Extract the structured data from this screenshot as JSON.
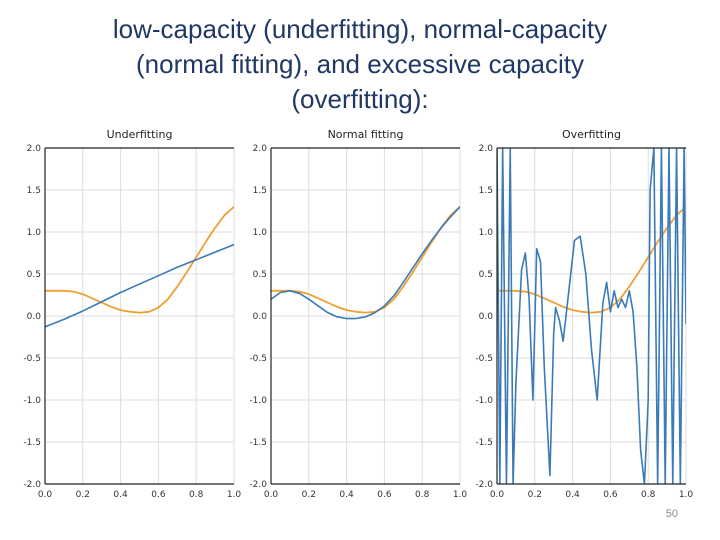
{
  "slide": {
    "title_lines": [
      "low-capacity (underfitting), normal-capacity",
      "(normal fitting), and excessive capacity",
      "(overfitting):"
    ],
    "page_number": "50"
  },
  "colors": {
    "model": "#3a7ab8",
    "truth": "#f0a030",
    "grid": "#dddddd",
    "axis": "#222222"
  },
  "chart_data": [
    {
      "type": "line",
      "title": "Underfitting",
      "xlabel": "",
      "ylabel": "",
      "xlim": [
        0.0,
        1.0
      ],
      "ylim": [
        -2.0,
        2.0
      ],
      "xticks": [
        "0.0",
        "0.2",
        "0.4",
        "0.6",
        "0.8",
        "1.0"
      ],
      "yticks": [
        "2.0",
        "1.5",
        "1.0",
        "0.5",
        "0.0",
        "-0.5",
        "-1.0",
        "-1.5",
        "-2.0"
      ],
      "grid": true,
      "series": [
        {
          "role": "truth",
          "x": [
            0,
            0.05,
            0.1,
            0.15,
            0.2,
            0.25,
            0.3,
            0.35,
            0.4,
            0.45,
            0.5,
            0.55,
            0.6,
            0.65,
            0.7,
            0.75,
            0.8,
            0.85,
            0.9,
            0.95,
            1.0
          ],
          "y": [
            0.3,
            0.3,
            0.3,
            0.29,
            0.26,
            0.21,
            0.16,
            0.11,
            0.07,
            0.05,
            0.04,
            0.05,
            0.1,
            0.2,
            0.35,
            0.52,
            0.7,
            0.88,
            1.05,
            1.2,
            1.3
          ]
        },
        {
          "role": "model",
          "x": [
            0,
            0.1,
            0.2,
            0.3,
            0.4,
            0.5,
            0.6,
            0.7,
            0.8,
            0.9,
            1.0
          ],
          "y": [
            -0.13,
            -0.04,
            0.06,
            0.17,
            0.28,
            0.38,
            0.48,
            0.58,
            0.67,
            0.76,
            0.85
          ]
        }
      ]
    },
    {
      "type": "line",
      "title": "Normal fitting",
      "xlabel": "",
      "ylabel": "",
      "xlim": [
        0.0,
        1.0
      ],
      "ylim": [
        -2.0,
        2.0
      ],
      "xticks": [
        "0.0",
        "0.2",
        "0.4",
        "0.6",
        "0.8",
        "1.0"
      ],
      "yticks": [
        "2.0",
        "1.5",
        "1.0",
        "0.5",
        "0.0",
        "-0.5",
        "-1.0",
        "-1.5",
        "-2.0"
      ],
      "grid": true,
      "series": [
        {
          "role": "truth",
          "x": [
            0,
            0.05,
            0.1,
            0.15,
            0.2,
            0.25,
            0.3,
            0.35,
            0.4,
            0.45,
            0.5,
            0.55,
            0.6,
            0.65,
            0.7,
            0.75,
            0.8,
            0.85,
            0.9,
            0.95,
            1.0
          ],
          "y": [
            0.3,
            0.3,
            0.3,
            0.29,
            0.26,
            0.21,
            0.16,
            0.11,
            0.07,
            0.05,
            0.04,
            0.05,
            0.1,
            0.2,
            0.35,
            0.52,
            0.7,
            0.88,
            1.05,
            1.2,
            1.3
          ]
        },
        {
          "role": "model",
          "x": [
            0,
            0.05,
            0.1,
            0.15,
            0.2,
            0.25,
            0.3,
            0.35,
            0.4,
            0.45,
            0.5,
            0.55,
            0.6,
            0.65,
            0.7,
            0.75,
            0.8,
            0.85,
            0.9,
            0.95,
            1.0
          ],
          "y": [
            0.2,
            0.28,
            0.3,
            0.27,
            0.2,
            0.12,
            0.04,
            -0.01,
            -0.03,
            -0.03,
            -0.01,
            0.04,
            0.12,
            0.24,
            0.4,
            0.57,
            0.74,
            0.9,
            1.05,
            1.18,
            1.3
          ]
        }
      ]
    },
    {
      "type": "line",
      "title": "Overfitting",
      "xlabel": "",
      "ylabel": "",
      "xlim": [
        0.0,
        1.0
      ],
      "ylim": [
        -2.0,
        2.0
      ],
      "xticks": [
        "0.0",
        "0.2",
        "0.4",
        "0.6",
        "0.8",
        "1.0"
      ],
      "yticks": [
        "2.0",
        "1.5",
        "1.0",
        "0.5",
        "0.0",
        "-0.5",
        "-1.0",
        "-1.5",
        "-2.0"
      ],
      "grid": true,
      "series": [
        {
          "role": "truth",
          "x": [
            0,
            0.05,
            0.1,
            0.15,
            0.2,
            0.25,
            0.3,
            0.35,
            0.4,
            0.45,
            0.5,
            0.55,
            0.6,
            0.65,
            0.7,
            0.75,
            0.8,
            0.85,
            0.9,
            0.95,
            1.0
          ],
          "y": [
            0.3,
            0.3,
            0.3,
            0.29,
            0.26,
            0.21,
            0.16,
            0.11,
            0.07,
            0.05,
            0.04,
            0.05,
            0.1,
            0.2,
            0.35,
            0.52,
            0.7,
            0.88,
            1.05,
            1.2,
            1.3
          ]
        },
        {
          "role": "model",
          "x": [
            0.0,
            0.015,
            0.03,
            0.05,
            0.07,
            0.085,
            0.1,
            0.13,
            0.15,
            0.17,
            0.19,
            0.21,
            0.23,
            0.25,
            0.28,
            0.3,
            0.31,
            0.33,
            0.35,
            0.38,
            0.41,
            0.44,
            0.47,
            0.5,
            0.53,
            0.56,
            0.58,
            0.6,
            0.62,
            0.64,
            0.66,
            0.68,
            0.7,
            0.72,
            0.74,
            0.76,
            0.78,
            0.8,
            0.81,
            0.83,
            0.85,
            0.87,
            0.89,
            0.91,
            0.93,
            0.95,
            0.97,
            0.99,
            1.0
          ],
          "y": [
            2.0,
            -2.0,
            2.0,
            -2.0,
            2.0,
            -2.0,
            -0.8,
            0.55,
            0.75,
            0.2,
            -1.0,
            0.8,
            0.65,
            -0.6,
            -1.9,
            -0.2,
            0.1,
            -0.05,
            -0.3,
            0.3,
            0.9,
            0.95,
            0.5,
            -0.4,
            -1.0,
            0.15,
            0.4,
            0.05,
            0.3,
            0.1,
            0.2,
            0.1,
            0.3,
            0.05,
            -0.6,
            -1.6,
            -2.0,
            -1.0,
            1.5,
            2.0,
            -2.0,
            2.0,
            -2.0,
            2.0,
            -2.0,
            2.0,
            -2.0,
            2.0,
            -0.1
          ]
        }
      ]
    }
  ]
}
